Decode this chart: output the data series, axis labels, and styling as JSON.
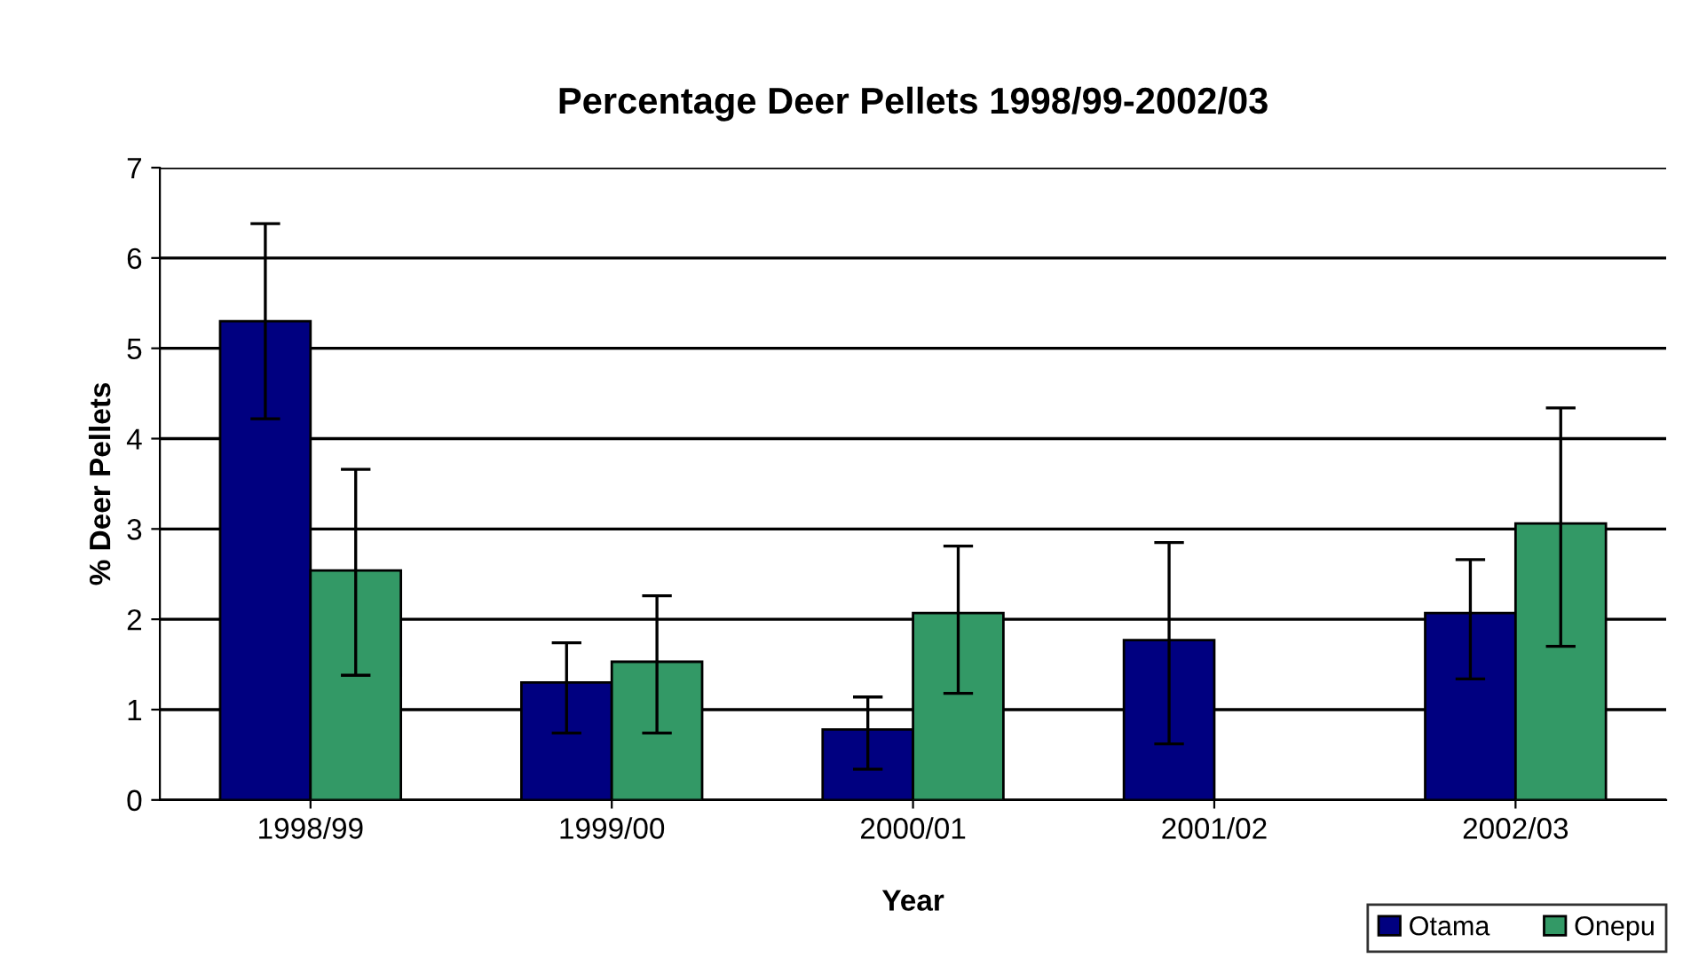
{
  "chart_data": {
    "type": "bar",
    "title": "Percentage Deer Pellets 1998/99-2002/03",
    "xlabel": "Year",
    "ylabel": "% Deer Pellets",
    "categories": [
      "1998/99",
      "1999/00",
      "2000/01",
      "2001/02",
      "2002/03"
    ],
    "series": [
      {
        "name": "Otama",
        "color": "#000080",
        "values": [
          5.3,
          1.3,
          0.78,
          1.77,
          2.07
        ],
        "errors": [
          [
            4.22,
            6.38
          ],
          [
            0.74,
            1.74
          ],
          [
            0.34,
            1.14
          ],
          [
            0.62,
            2.85
          ],
          [
            1.34,
            2.66
          ]
        ]
      },
      {
        "name": "Onepu",
        "color": "#339966",
        "values": [
          2.54,
          1.53,
          2.07,
          null,
          3.06
        ],
        "errors": [
          [
            1.38,
            3.66
          ],
          [
            0.74,
            2.26
          ],
          [
            1.18,
            2.81
          ],
          null,
          [
            1.7,
            4.34
          ]
        ]
      }
    ],
    "ylim": [
      0,
      7
    ],
    "yticks": [
      0,
      1,
      2,
      3,
      4,
      5,
      6,
      7
    ],
    "grid": "y",
    "legend": "bottom right"
  }
}
